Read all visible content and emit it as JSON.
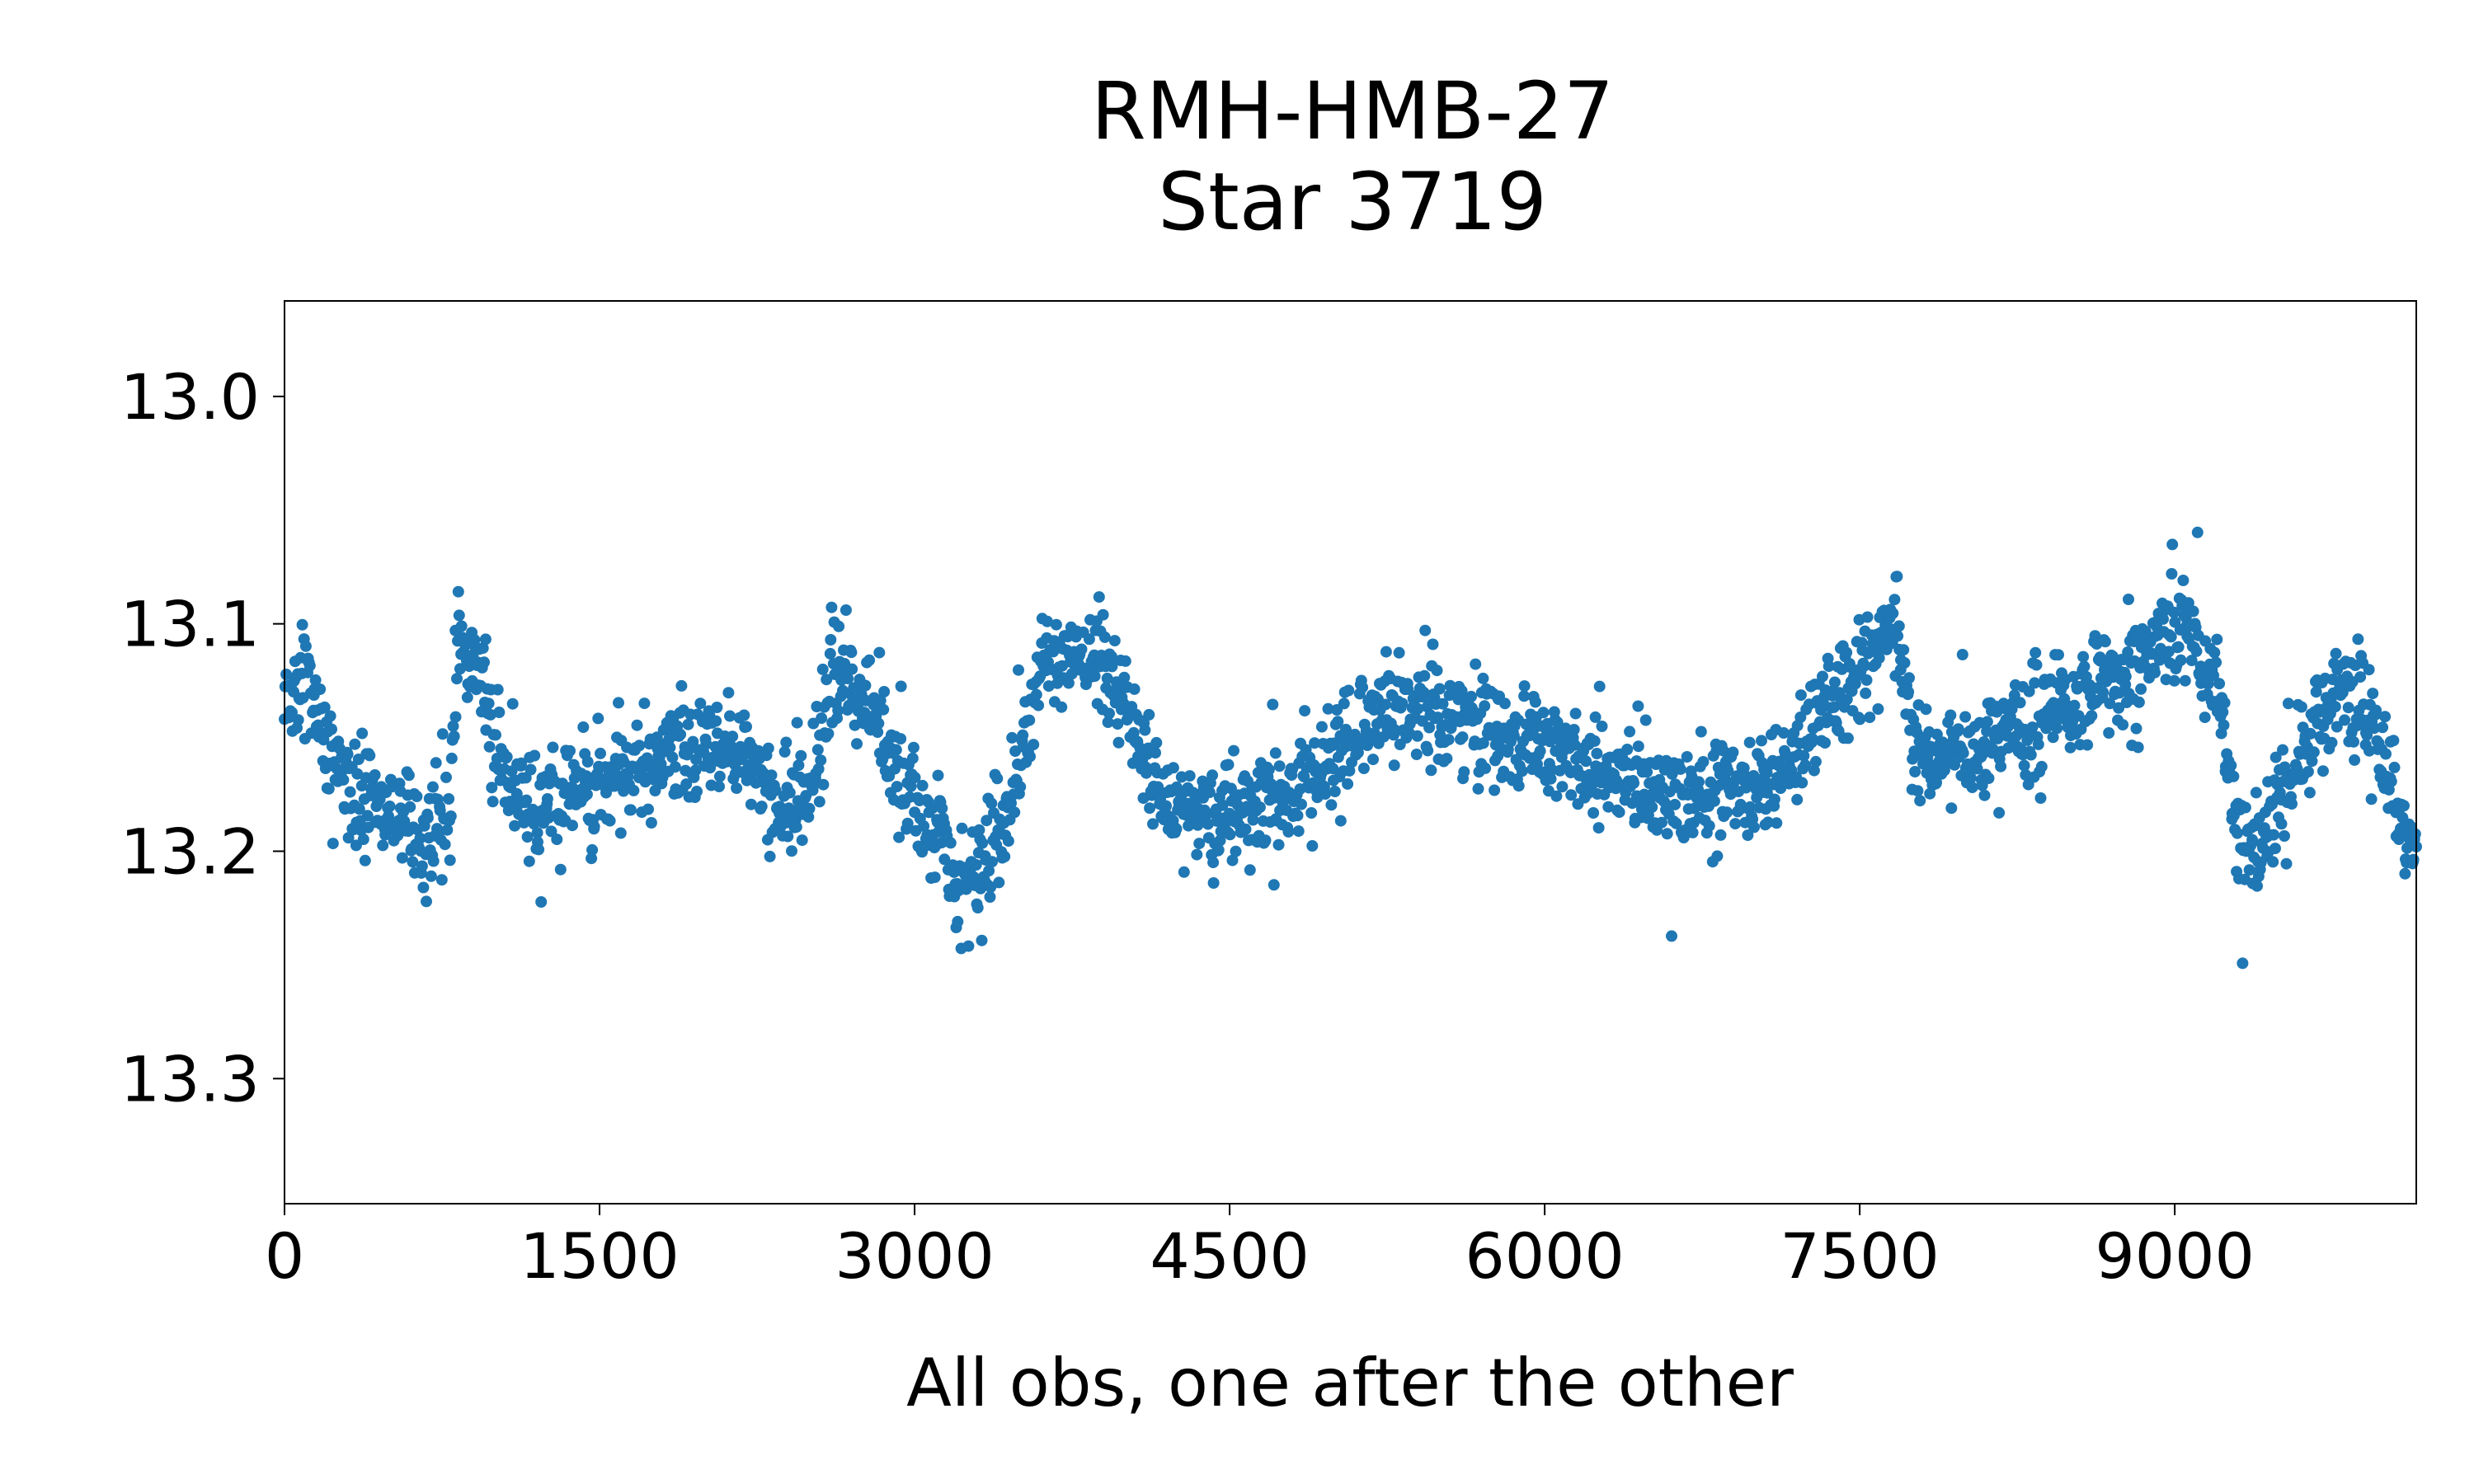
{
  "chart_data": {
    "type": "scatter",
    "title_lines": [
      "RMH-HMB-27",
      "Star 3719"
    ],
    "xlabel": "All obs, one after the other",
    "ylabel": "",
    "xlim": [
      0,
      10150
    ],
    "ylim": [
      13.355,
      12.958
    ],
    "y_inverted": true,
    "x_ticks": [
      0,
      1500,
      3000,
      4500,
      6000,
      7500,
      9000
    ],
    "x_tick_labels": [
      "0",
      "1500",
      "3000",
      "4500",
      "6000",
      "7500",
      "9000"
    ],
    "y_ticks": [
      13.0,
      13.1,
      13.2,
      13.3
    ],
    "y_tick_labels": [
      "13.0",
      "13.1",
      "13.2",
      "13.3"
    ],
    "grid": false,
    "marker_color": "#1f77b4",
    "series_trend": {
      "x": [
        0,
        100,
        200,
        300,
        450,
        600,
        700,
        780,
        820,
        900,
        1000,
        1100,
        1200,
        1300,
        1500,
        1700,
        1900,
        2100,
        2200,
        2350,
        2500,
        2600,
        2700,
        2800,
        2950,
        3100,
        3200,
        3300,
        3450,
        3600,
        3750,
        3900,
        4000,
        4100,
        4200,
        4350,
        4500,
        4700,
        4900,
        5050,
        5200,
        5400,
        5600,
        5800,
        6000,
        6200,
        6400,
        6600,
        6800,
        7000,
        7200,
        7400,
        7550,
        7650,
        7700,
        7750,
        7900,
        8100,
        8300,
        8500,
        8700,
        8900,
        9000,
        9100,
        9200,
        9250,
        9300,
        9400,
        9500,
        9600,
        9700,
        9800,
        9900,
        10000,
        10100,
        10150
      ],
      "y": [
        13.135,
        13.125,
        13.15,
        13.17,
        13.18,
        13.19,
        13.195,
        13.19,
        13.11,
        13.115,
        13.15,
        13.175,
        13.185,
        13.18,
        13.17,
        13.16,
        13.155,
        13.15,
        13.16,
        13.175,
        13.18,
        13.12,
        13.125,
        13.14,
        13.17,
        13.195,
        13.21,
        13.215,
        13.18,
        13.12,
        13.115,
        13.12,
        13.13,
        13.165,
        13.18,
        13.185,
        13.185,
        13.175,
        13.165,
        13.155,
        13.14,
        13.135,
        13.14,
        13.15,
        13.155,
        13.16,
        13.17,
        13.175,
        13.175,
        13.17,
        13.155,
        13.13,
        13.11,
        13.1,
        13.12,
        13.15,
        13.16,
        13.155,
        13.145,
        13.135,
        13.12,
        13.11,
        13.1,
        13.11,
        13.125,
        13.15,
        13.2,
        13.2,
        13.175,
        13.155,
        13.14,
        13.125,
        13.14,
        13.165,
        13.19,
        13.2
      ]
    }
  }
}
